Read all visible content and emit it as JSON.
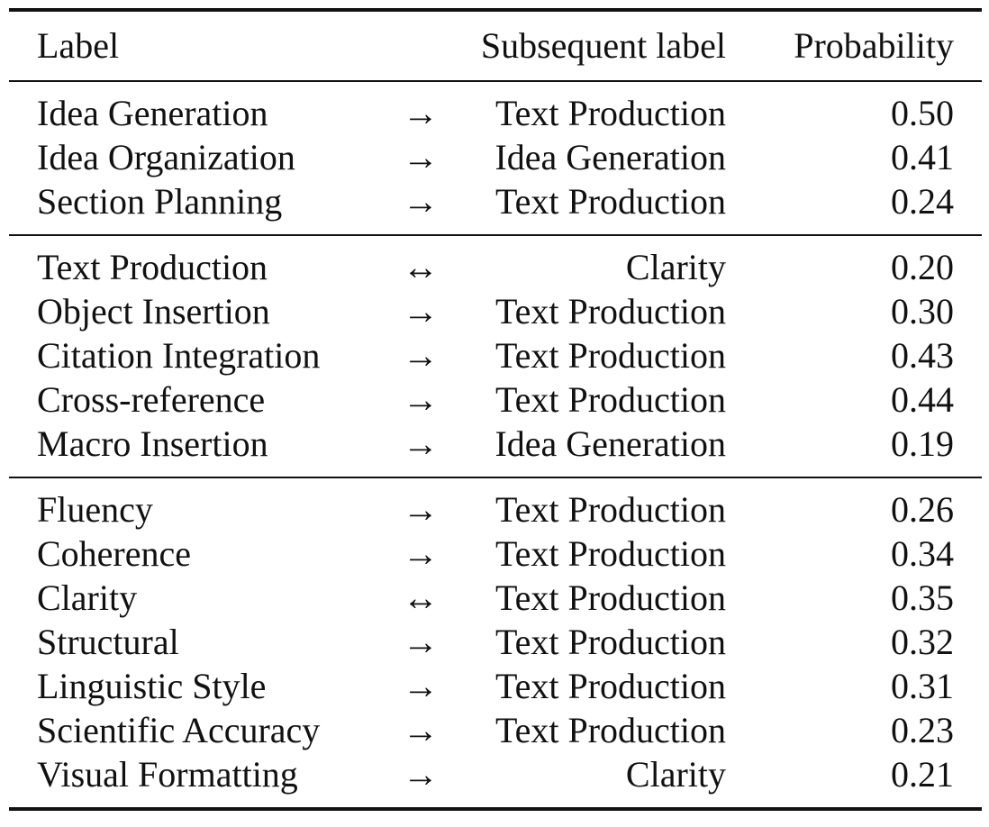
{
  "header": {
    "label": "Label",
    "subsequent": "Subsequent label",
    "probability": "Probability"
  },
  "groups": [
    {
      "rows": [
        {
          "label": "Idea Generation",
          "arrow": "→",
          "next": "Text Production",
          "prob": "0.50"
        },
        {
          "label": "Idea Organization",
          "arrow": "→",
          "next": "Idea Generation",
          "prob": "0.41"
        },
        {
          "label": "Section Planning",
          "arrow": "→",
          "next": "Text Production",
          "prob": "0.24"
        }
      ]
    },
    {
      "rows": [
        {
          "label": "Text Production",
          "arrow": "↔",
          "next": "Clarity",
          "prob": "0.20"
        },
        {
          "label": "Object Insertion",
          "arrow": "→",
          "next": "Text Production",
          "prob": "0.30"
        },
        {
          "label": "Citation Integration",
          "arrow": "→",
          "next": "Text Production",
          "prob": "0.43"
        },
        {
          "label": "Cross-reference",
          "arrow": "→",
          "next": "Text Production",
          "prob": "0.44"
        },
        {
          "label": "Macro Insertion",
          "arrow": "→",
          "next": "Idea Generation",
          "prob": "0.19"
        }
      ]
    },
    {
      "rows": [
        {
          "label": "Fluency",
          "arrow": "→",
          "next": "Text Production",
          "prob": "0.26"
        },
        {
          "label": "Coherence",
          "arrow": "→",
          "next": "Text Production",
          "prob": "0.34"
        },
        {
          "label": "Clarity",
          "arrow": "↔",
          "next": "Text Production",
          "prob": "0.35"
        },
        {
          "label": "Structural",
          "arrow": "→",
          "next": "Text Production",
          "prob": "0.32"
        },
        {
          "label": "Linguistic Style",
          "arrow": "→",
          "next": "Text Production",
          "prob": "0.31"
        },
        {
          "label": "Scientific Accuracy",
          "arrow": "→",
          "next": "Text Production",
          "prob": "0.23"
        },
        {
          "label": "Visual Formatting",
          "arrow": "→",
          "next": "Clarity",
          "prob": "0.21"
        }
      ]
    }
  ]
}
